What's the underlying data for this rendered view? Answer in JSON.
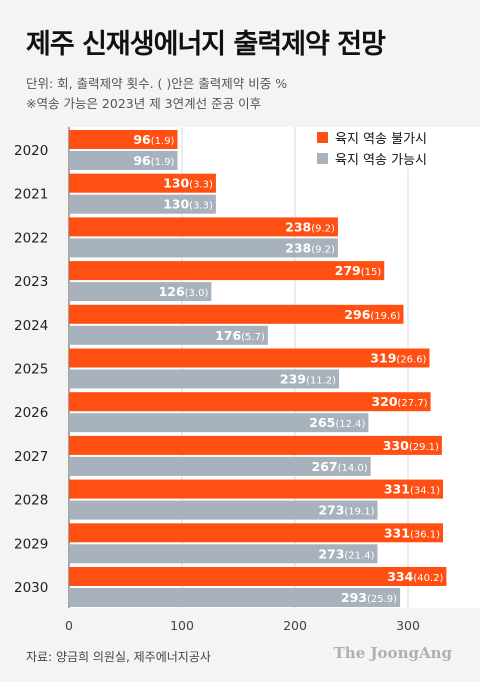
{
  "header": {
    "title": "제주 신재생에너지 출력제약 전망",
    "subtitle_1": "단위: 회, 출력제약 횟수. ( )안은 출력제약 비중 %",
    "subtitle_2": "※역송 가능은 2023년 제 3연계선 준공 이후"
  },
  "chart_data": {
    "type": "bar",
    "orientation": "horizontal",
    "categories": [
      "2020",
      "2021",
      "2022",
      "2023",
      "2024",
      "2025",
      "2026",
      "2027",
      "2028",
      "2029",
      "2030"
    ],
    "series": [
      {
        "name": "육지 역송 불가시",
        "color": "#ff4f12",
        "values": [
          96,
          130,
          238,
          279,
          296,
          319,
          320,
          330,
          331,
          331,
          334
        ],
        "shares": [
          "1.9",
          "3.3",
          "9.2",
          "15",
          "19.6",
          "26.6",
          "27.7",
          "29.1",
          "34.1",
          "36.1",
          "40.2"
        ]
      },
      {
        "name": "육지 역송 가능시",
        "color": "#a7b2bc",
        "values": [
          96,
          130,
          238,
          126,
          176,
          239,
          265,
          267,
          273,
          273,
          293
        ],
        "shares": [
          "1.9",
          "3.3",
          "9.2",
          "3.0",
          "5.7",
          "11.2",
          "12.4",
          "14.0",
          "19.1",
          "21.4",
          "25.9"
        ]
      }
    ],
    "xlim": [
      0,
      350
    ],
    "xticks": [
      0,
      100,
      200,
      300
    ],
    "grid": "vertical",
    "legend_position": "top-right"
  },
  "footer": {
    "source": "자료: 양금희 의원실, 제주에너지공사",
    "brand": "The JoongAng"
  }
}
